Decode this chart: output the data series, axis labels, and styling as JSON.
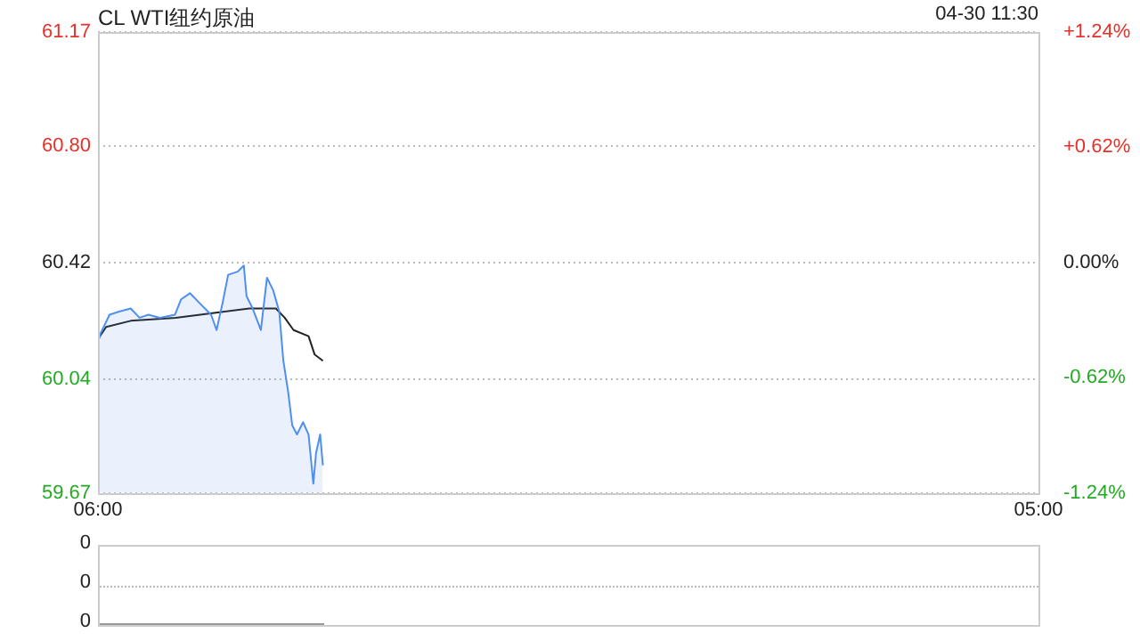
{
  "chart_data": [
    {
      "type": "line",
      "title": "CL WTI纽约原油",
      "annotations": [
        "04-30 11:30"
      ],
      "marker": "none",
      "grid": "y",
      "xlim": [
        "--04-30T06:00",
        "--05-01T05:00"
      ],
      "xticks": [
        {
          "value": "--04-30T06:00",
          "label": "06:00"
        },
        {
          "value": "--05-01T05:00",
          "label": "05:00"
        }
      ],
      "ylim": [
        59.67,
        61.17
      ],
      "yticks": [
        61.17,
        {
          "value": 60.8,
          "label": "60.80"
        },
        60.42,
        60.04,
        59.67
      ],
      "y2lim": [
        -1.24,
        1.24
      ],
      "y2ticks": [
        {
          "value": 1.24,
          "label": "+1.24%"
        },
        {
          "value": 0.62,
          "label": "+0.62%"
        },
        {
          "value": 0,
          "label": "0.00%"
        },
        {
          "value": -0.62,
          "label": "-0.62%"
        },
        {
          "value": -1.24,
          "label": "-1.24%"
        }
      ],
      "series": [
        {
          "type": "area",
          "color": "#4f8ff0",
          "x": [
            "--04-30T06:00",
            "--04-30T06:04",
            "--04-30T06:17",
            "--04-30T06:31",
            "--04-30T06:48",
            "--04-30T07:01",
            "--04-30T07:14",
            "--04-30T07:31",
            "--04-30T07:53",
            "--04-30T08:02",
            "--04-30T08:15",
            "--04-30T08:28",
            "--04-30T08:46",
            "--04-30T08:54",
            "--04-30T09:03",
            "--04-30T09:11",
            "--04-30T09:25",
            "--04-30T09:34",
            "--04-30T09:38",
            "--04-30T09:47",
            "--04-30T09:59",
            "--04-30T10:08",
            "--04-30T10:17",
            "--04-30T10:26",
            "--04-30T10:32",
            "--04-30T10:39",
            "--04-30T10:45",
            "--04-30T10:52",
            "--04-30T11:01",
            "--04-30T11:09",
            "--04-30T11:16",
            "--04-30T11:20",
            "--04-30T11:26",
            "--04-30T11:30"
          ],
          "values": [
            60.16,
            60.19,
            60.25,
            60.26,
            60.27,
            60.24,
            60.25,
            60.24,
            60.25,
            60.3,
            60.32,
            60.29,
            60.25,
            60.2,
            60.29,
            60.38,
            60.39,
            60.41,
            60.31,
            60.27,
            60.2,
            60.37,
            60.33,
            60.26,
            60.1,
            60.0,
            59.89,
            59.86,
            59.9,
            59.86,
            59.7,
            59.8,
            59.86,
            59.76
          ]
        },
        {
          "type": "line",
          "color": "#222222",
          "x": [
            "--04-30T06:00",
            "--04-30T06:12",
            "--04-30T06:48",
            "--04-30T07:54",
            "--04-30T08:30",
            "--04-30T09:42",
            "--04-30T10:21",
            "--04-30T10:34",
            "--04-30T10:47",
            "--04-30T11:09",
            "--04-30T11:18",
            "--04-30T11:30"
          ],
          "values": [
            60.17,
            60.21,
            60.23,
            60.24,
            60.25,
            60.27,
            60.27,
            60.24,
            60.2,
            60.18,
            60.12,
            60.1
          ]
        }
      ]
    },
    {
      "type": "other",
      "annotations": [
        "0",
        "0",
        "0"
      ]
    }
  ]
}
